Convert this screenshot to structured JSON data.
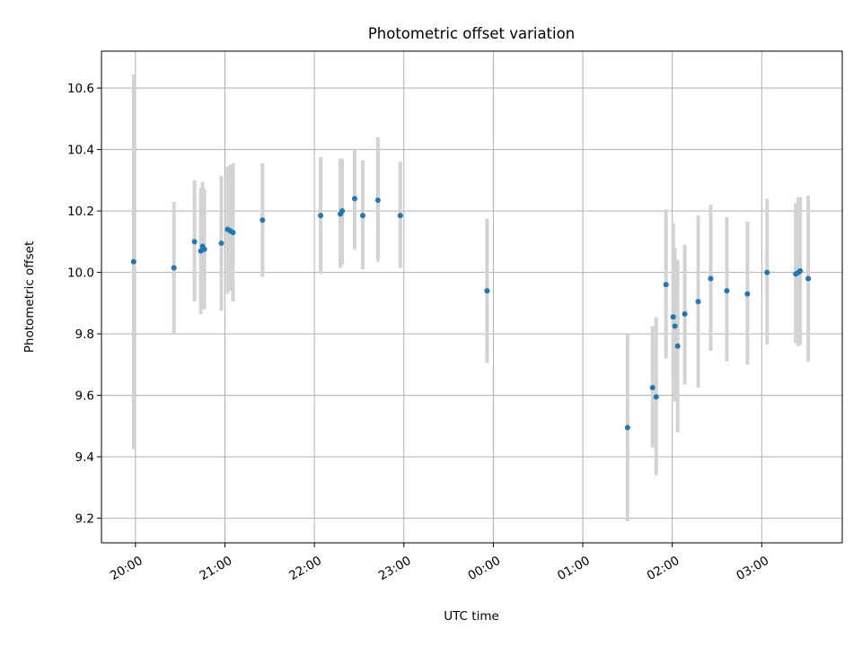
{
  "chart_data": {
    "type": "scatter",
    "title": "Photometric offset variation",
    "xlabel": "UTC time",
    "ylabel": "Photometric offset",
    "x_range_hours": [
      19.62,
      27.9
    ],
    "xticks": [
      {
        "h": 20,
        "label": "20:00"
      },
      {
        "h": 21,
        "label": "21:00"
      },
      {
        "h": 22,
        "label": "22:00"
      },
      {
        "h": 23,
        "label": "23:00"
      },
      {
        "h": 24,
        "label": "00:00"
      },
      {
        "h": 25,
        "label": "01:00"
      },
      {
        "h": 26,
        "label": "02:00"
      },
      {
        "h": 27,
        "label": "03:00"
      }
    ],
    "ylim": [
      9.12,
      10.72
    ],
    "yticks": [
      {
        "v": 9.2,
        "label": "9.2"
      },
      {
        "v": 9.4,
        "label": "9.4"
      },
      {
        "v": 9.6,
        "label": "9.6"
      },
      {
        "v": 9.8,
        "label": "9.8"
      },
      {
        "v": 10.0,
        "label": "10.0"
      },
      {
        "v": 10.2,
        "label": "10.2"
      },
      {
        "v": 10.4,
        "label": "10.4"
      },
      {
        "v": 10.6,
        "label": "10.6"
      }
    ],
    "grid": true,
    "point_color": "#1f77b4",
    "errorbar_color": "#d3d3d3",
    "points": [
      {
        "h": 19.98,
        "y": 10.035,
        "lo": 9.425,
        "hi": 10.645
      },
      {
        "h": 20.43,
        "y": 10.015,
        "lo": 9.8,
        "hi": 10.23
      },
      {
        "h": 20.66,
        "y": 10.1,
        "lo": 9.905,
        "hi": 10.3
      },
      {
        "h": 20.73,
        "y": 10.07,
        "lo": 9.865,
        "hi": 10.275
      },
      {
        "h": 20.75,
        "y": 10.085,
        "lo": 9.88,
        "hi": 10.295
      },
      {
        "h": 20.77,
        "y": 10.075,
        "lo": 9.88,
        "hi": 10.27
      },
      {
        "h": 20.96,
        "y": 10.095,
        "lo": 9.875,
        "hi": 10.315
      },
      {
        "h": 21.03,
        "y": 10.14,
        "lo": 9.93,
        "hi": 10.345
      },
      {
        "h": 21.06,
        "y": 10.135,
        "lo": 9.94,
        "hi": 10.35
      },
      {
        "h": 21.09,
        "y": 10.13,
        "lo": 9.905,
        "hi": 10.355
      },
      {
        "h": 21.42,
        "y": 10.17,
        "lo": 9.985,
        "hi": 10.355
      },
      {
        "h": 22.07,
        "y": 10.185,
        "lo": 9.995,
        "hi": 10.375
      },
      {
        "h": 22.29,
        "y": 10.19,
        "lo": 10.015,
        "hi": 10.37
      },
      {
        "h": 22.31,
        "y": 10.2,
        "lo": 10.025,
        "hi": 10.37
      },
      {
        "h": 22.45,
        "y": 10.24,
        "lo": 10.075,
        "hi": 10.4
      },
      {
        "h": 22.54,
        "y": 10.185,
        "lo": 10.01,
        "hi": 10.365
      },
      {
        "h": 22.71,
        "y": 10.235,
        "lo": 10.035,
        "hi": 10.44
      },
      {
        "h": 22.96,
        "y": 10.185,
        "lo": 10.015,
        "hi": 10.36
      },
      {
        "h": 23.93,
        "y": 9.94,
        "lo": 9.705,
        "hi": 10.175
      },
      {
        "h": 25.5,
        "y": 9.495,
        "lo": 9.19,
        "hi": 9.8
      },
      {
        "h": 25.78,
        "y": 9.625,
        "lo": 9.43,
        "hi": 9.825
      },
      {
        "h": 25.82,
        "y": 9.595,
        "lo": 9.34,
        "hi": 9.855
      },
      {
        "h": 25.93,
        "y": 9.96,
        "lo": 9.72,
        "hi": 10.205
      },
      {
        "h": 26.01,
        "y": 9.855,
        "lo": 9.63,
        "hi": 10.16
      },
      {
        "h": 26.03,
        "y": 9.825,
        "lo": 9.58,
        "hi": 10.08
      },
      {
        "h": 26.06,
        "y": 9.76,
        "lo": 9.48,
        "hi": 10.04
      },
      {
        "h": 26.14,
        "y": 9.865,
        "lo": 9.635,
        "hi": 10.09
      },
      {
        "h": 26.29,
        "y": 9.905,
        "lo": 9.625,
        "hi": 10.185
      },
      {
        "h": 26.43,
        "y": 9.98,
        "lo": 9.745,
        "hi": 10.22
      },
      {
        "h": 26.61,
        "y": 9.94,
        "lo": 9.71,
        "hi": 10.18
      },
      {
        "h": 26.84,
        "y": 9.93,
        "lo": 9.7,
        "hi": 10.165
      },
      {
        "h": 27.06,
        "y": 10.0,
        "lo": 9.765,
        "hi": 10.24
      },
      {
        "h": 27.38,
        "y": 9.995,
        "lo": 9.77,
        "hi": 10.225
      },
      {
        "h": 27.41,
        "y": 10.0,
        "lo": 9.76,
        "hi": 10.245
      },
      {
        "h": 27.43,
        "y": 10.005,
        "lo": 9.765,
        "hi": 10.245
      },
      {
        "h": 27.52,
        "y": 9.98,
        "lo": 9.71,
        "hi": 10.25
      }
    ]
  }
}
